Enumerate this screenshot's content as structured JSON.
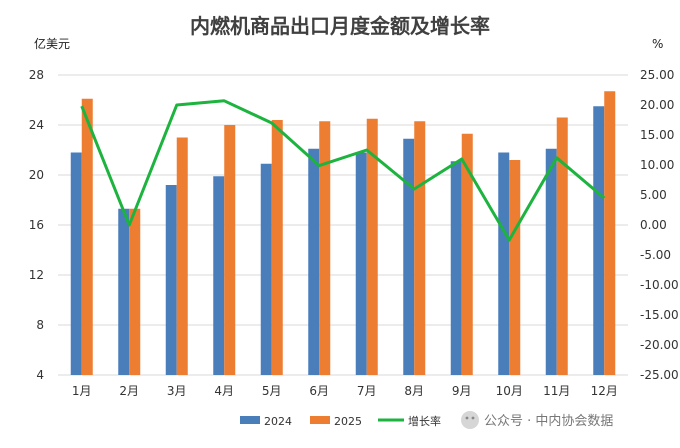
{
  "chart_data": {
    "type": "bar",
    "title": "内燃机商品出口月度金额及增长率",
    "left_unit": "亿美元",
    "right_unit": "%",
    "categories": [
      "1月",
      "2月",
      "3月",
      "4月",
      "5月",
      "6月",
      "7月",
      "8月",
      "9月",
      "10月",
      "11月",
      "12月"
    ],
    "series": [
      {
        "name": "2024",
        "type": "bar",
        "axis": "left",
        "color": "#4a7ebb",
        "values": [
          21.8,
          17.3,
          19.2,
          19.9,
          20.9,
          22.1,
          21.8,
          22.9,
          21.1,
          21.8,
          22.1,
          25.5
        ]
      },
      {
        "name": "2025",
        "type": "bar",
        "axis": "left",
        "color": "#ed7d31",
        "values": [
          26.1,
          17.3,
          23.0,
          24.0,
          24.4,
          24.3,
          24.5,
          24.3,
          23.3,
          21.2,
          24.6,
          26.7
        ]
      },
      {
        "name": "增长率",
        "type": "line",
        "axis": "right",
        "color": "#1db33f",
        "values": [
          19.8,
          0.0,
          20.0,
          20.7,
          17.0,
          9.9,
          12.5,
          6.0,
          11.0,
          -2.5,
          11.2,
          4.5
        ]
      }
    ],
    "y_left": {
      "min": 4,
      "max": 28,
      "ticks": [
        4,
        8,
        12,
        16,
        20,
        24,
        28
      ]
    },
    "y_right": {
      "min": -25,
      "max": 25,
      "ticks": [
        "-25.00",
        "-20.00",
        "-15.00",
        "-10.00",
        "-5.00",
        "0.00",
        "5.00",
        "10.00",
        "15.00",
        "20.00",
        "25.00"
      ]
    },
    "grid": true,
    "legend_position": "bottom"
  },
  "watermark": {
    "text": "公众号 · 中内协会数据"
  }
}
